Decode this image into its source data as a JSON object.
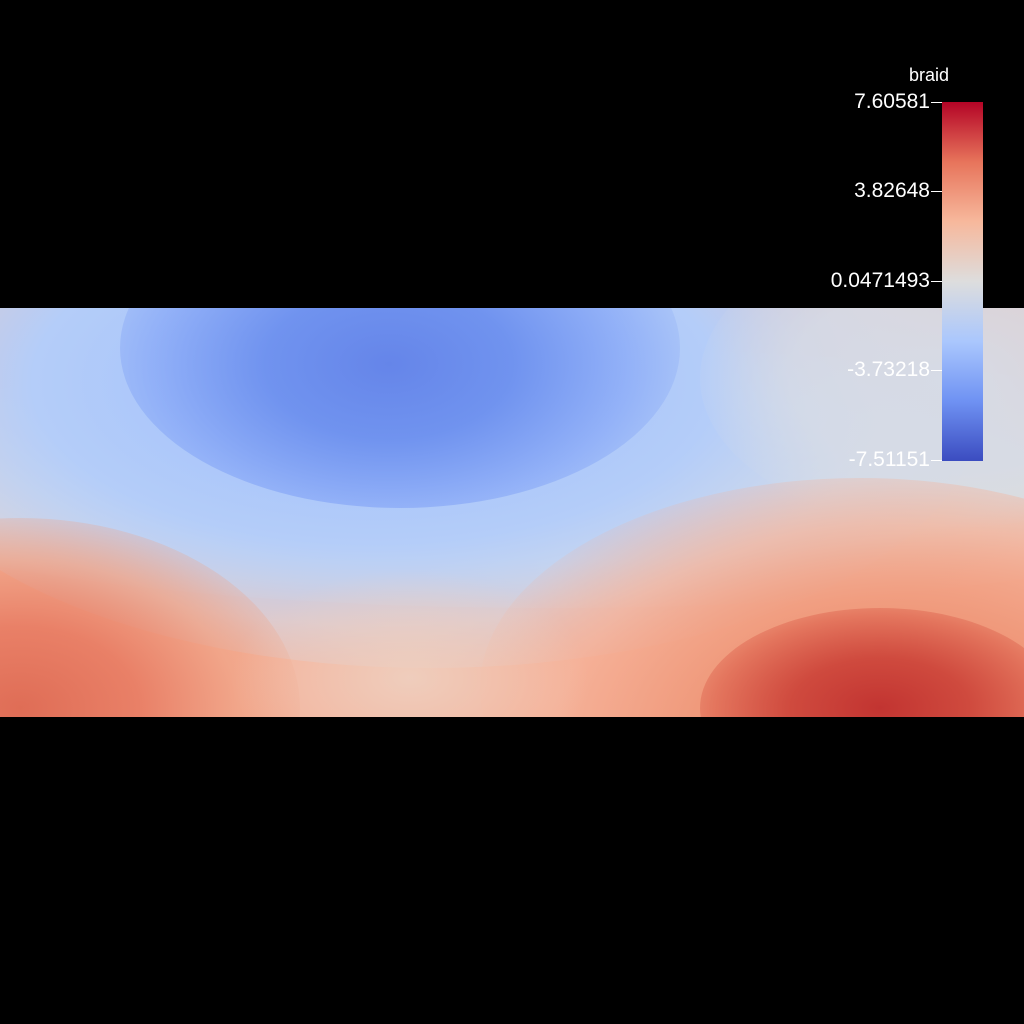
{
  "chart_data": {
    "type": "heatmap",
    "colorbar": {
      "title": "braid",
      "range": [
        -7.51151,
        7.60581
      ],
      "ticks": [
        "7.60581",
        "3.82648",
        "0.0471493",
        "-3.73218",
        "-7.51151"
      ],
      "colormap": "cool-to-warm",
      "colors": [
        "#3b4cc0",
        "#6f92f3",
        "#aac7fd",
        "#dddddd",
        "#f7b89c",
        "#e7745b",
        "#b40426"
      ]
    },
    "features": [
      {
        "name": "low-region",
        "location": "upper-center",
        "approx_value": -6.5
      },
      {
        "name": "high-region",
        "location": "lower-right",
        "approx_value": 7.2
      },
      {
        "name": "moderate-high-region",
        "location": "lower-left",
        "approx_value": 5.0
      }
    ],
    "background": "#000000"
  }
}
